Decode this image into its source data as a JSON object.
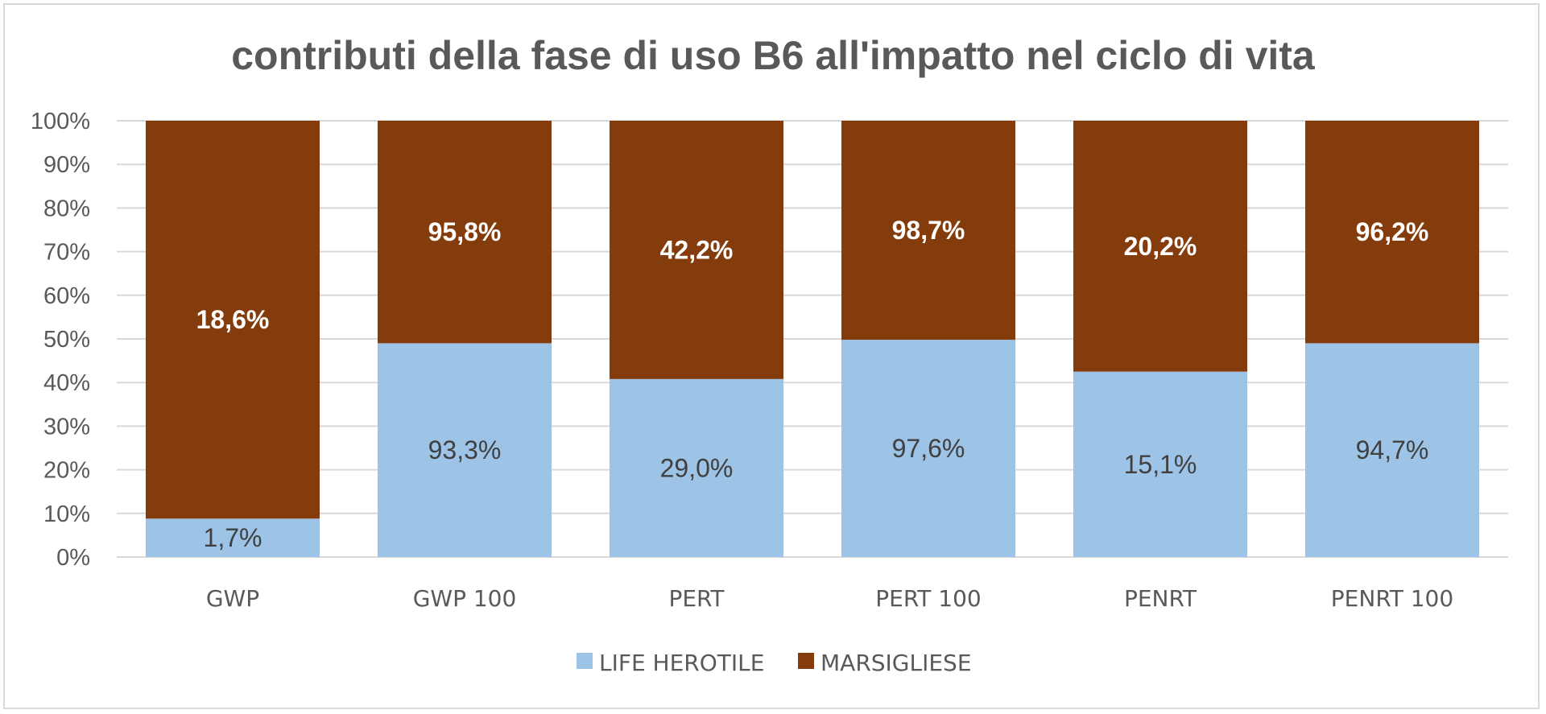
{
  "chart_data": {
    "type": "bar",
    "stacked": true,
    "title": "contributi della fase di uso B6 all'impatto nel ciclo di vita",
    "categories": [
      "GWP",
      "GWP 100",
      "PERT",
      "PERT 100",
      "PENRT",
      "PENRT 100"
    ],
    "ylim": [
      0,
      100
    ],
    "yticks": [
      "0%",
      "10%",
      "20%",
      "30%",
      "40%",
      "50%",
      "60%",
      "70%",
      "80%",
      "90%",
      "100%"
    ],
    "grid": true,
    "legend_position": "bottom",
    "series": [
      {
        "name": "LIFE HEROTILE",
        "color": "#9dc3e6",
        "values": [
          8.8,
          49.0,
          40.8,
          49.8,
          42.5,
          49.0
        ],
        "labels": [
          "1,7%",
          "93,3%",
          "29,0%",
          "97,6%",
          "15,1%",
          "94,7%"
        ]
      },
      {
        "name": "MARSIGLIESE",
        "color": "#843c0c",
        "values": [
          91.2,
          51.0,
          59.2,
          50.2,
          57.5,
          51.0
        ],
        "labels": [
          "18,6%",
          "95,8%",
          "42,2%",
          "98,7%",
          "20,2%",
          "96,2%"
        ]
      }
    ]
  }
}
